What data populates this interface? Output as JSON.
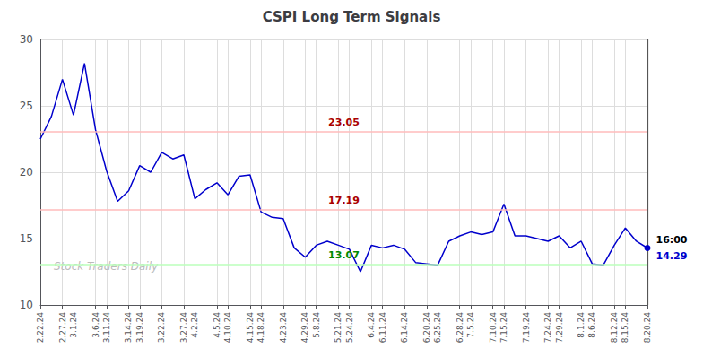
{
  "chart_data": {
    "type": "line",
    "title": "CSPI Long Term Signals",
    "categories": [
      "2.22.24",
      null,
      "2.27.24",
      "3.1.24",
      null,
      "3.6.24",
      "3.11.24",
      null,
      "3.14.24",
      "3.19.24",
      null,
      "3.22.24",
      null,
      "3.27.24",
      "4.2.24",
      null,
      "4.5.24",
      "4.10.24",
      null,
      "4.15.24",
      "4.18.24",
      null,
      "4.23.24",
      null,
      "4.29.24",
      "5.8.24",
      null,
      "5.21.24",
      "5.24.24",
      null,
      "6.4.24",
      "6.11.24",
      null,
      "6.14.24",
      null,
      "6.20.24",
      "6.25.24",
      null,
      "6.28.24",
      "7.5.24",
      null,
      "7.10.24",
      "7.15.24",
      null,
      "7.19.24",
      null,
      "7.24.24",
      "7.29.24",
      null,
      "8.1.24",
      "8.6.24",
      null,
      "8.12.24",
      "8.15.24",
      null,
      "8.20.24"
    ],
    "values": [
      22.5,
      24.2,
      27.0,
      24.3,
      28.2,
      23.2,
      20.1,
      17.8,
      18.6,
      20.5,
      20.0,
      21.5,
      21.0,
      21.3,
      18.0,
      18.7,
      19.2,
      18.3,
      19.7,
      19.8,
      17.0,
      16.6,
      16.5,
      14.3,
      13.6,
      14.5,
      14.8,
      14.5,
      14.2,
      12.5,
      14.5,
      14.3,
      14.5,
      14.2,
      13.2,
      13.1,
      13.0,
      14.8,
      15.2,
      15.5,
      15.3,
      15.5,
      17.6,
      15.2,
      15.2,
      15.0,
      14.8,
      15.2,
      14.3,
      14.8,
      13.1,
      13.0,
      14.5,
      15.8,
      14.8,
      14.29
    ],
    "color": "#0000cc",
    "ylim": [
      10,
      30
    ],
    "yticks": [
      10,
      15,
      20,
      25,
      30
    ],
    "grid": true,
    "grid_color": "#dddddd",
    "hlines": [
      {
        "value": 23.05,
        "label": "23.05",
        "color": "#ffbbbb",
        "label_color": "#aa0000"
      },
      {
        "value": 17.19,
        "label": "17.19",
        "color": "#ffbbbb",
        "label_color": "#aa0000"
      },
      {
        "value": 13.07,
        "label": "13.07",
        "color": "#bbffbb",
        "label_color": "#008800"
      }
    ],
    "vline": {
      "category": "8.20.24",
      "color": "#555555"
    },
    "last_point_labels": [
      {
        "text": "16:00",
        "color": "#000000"
      },
      {
        "text": "14.29",
        "color": "#0000cc"
      }
    ],
    "watermark": {
      "text": "Stock Traders Daily",
      "color": "#bbbbbb"
    }
  }
}
